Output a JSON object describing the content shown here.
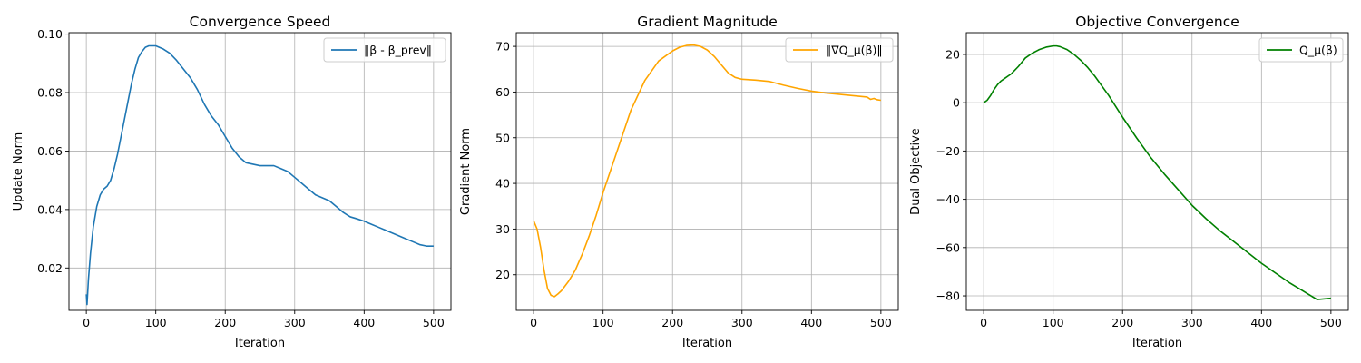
{
  "chart_data": [
    {
      "type": "line",
      "title": "Convergence Speed",
      "xlabel": "Iteration",
      "ylabel": "Update Norm",
      "xlim": [
        -25,
        525
      ],
      "ylim": [
        0.0055,
        0.1005
      ],
      "xticks": [
        0,
        100,
        200,
        300,
        400,
        500
      ],
      "xtick_labels": [
        "0",
        "100",
        "200",
        "300",
        "400",
        "500"
      ],
      "yticks": [
        0.02,
        0.04,
        0.06,
        0.08,
        0.1
      ],
      "ytick_labels": [
        "0.02",
        "0.04",
        "0.06",
        "0.08",
        "0.10"
      ],
      "grid": true,
      "legend_position": "top-right",
      "series": [
        {
          "name": "‖β - β_prev‖",
          "color": "#1f77b4",
          "x": [
            0,
            1,
            3,
            6,
            10,
            15,
            20,
            25,
            30,
            35,
            40,
            45,
            50,
            55,
            60,
            65,
            70,
            75,
            80,
            85,
            90,
            95,
            100,
            105,
            110,
            120,
            130,
            140,
            150,
            160,
            170,
            180,
            190,
            200,
            210,
            220,
            230,
            240,
            250,
            260,
            270,
            280,
            290,
            300,
            310,
            320,
            330,
            340,
            350,
            360,
            370,
            380,
            390,
            400,
            410,
            420,
            430,
            440,
            450,
            460,
            470,
            480,
            490,
            500
          ],
          "y": [
            0.011,
            0.0075,
            0.016,
            0.025,
            0.034,
            0.041,
            0.045,
            0.047,
            0.048,
            0.05,
            0.054,
            0.059,
            0.065,
            0.071,
            0.077,
            0.083,
            0.088,
            0.092,
            0.094,
            0.0955,
            0.096,
            0.096,
            0.096,
            0.0955,
            0.095,
            0.0935,
            0.091,
            0.088,
            0.085,
            0.081,
            0.076,
            0.072,
            0.069,
            0.065,
            0.061,
            0.058,
            0.056,
            0.0555,
            0.055,
            0.055,
            0.055,
            0.054,
            0.053,
            0.051,
            0.049,
            0.047,
            0.045,
            0.044,
            0.043,
            0.041,
            0.039,
            0.0375,
            0.0368,
            0.036,
            0.035,
            0.034,
            0.033,
            0.032,
            0.031,
            0.03,
            0.029,
            0.028,
            0.0275,
            0.0275
          ]
        }
      ]
    },
    {
      "type": "line",
      "title": "Gradient Magnitude",
      "xlabel": "Iteration",
      "ylabel": "Gradient Norm",
      "xlim": [
        -25,
        525
      ],
      "ylim": [
        12.2,
        73
      ],
      "xticks": [
        0,
        100,
        200,
        300,
        400,
        500
      ],
      "xtick_labels": [
        "0",
        "100",
        "200",
        "300",
        "400",
        "500"
      ],
      "yticks": [
        20,
        30,
        40,
        50,
        60,
        70
      ],
      "ytick_labels": [
        "20",
        "30",
        "40",
        "50",
        "60",
        "70"
      ],
      "grid": true,
      "legend_position": "top-right",
      "series": [
        {
          "name": "‖∇Q_μ(β)‖",
          "color": "#ffa500",
          "x": [
            0,
            5,
            10,
            15,
            20,
            25,
            30,
            35,
            40,
            50,
            60,
            70,
            80,
            90,
            100,
            120,
            140,
            160,
            180,
            200,
            210,
            220,
            230,
            240,
            250,
            260,
            270,
            280,
            290,
            300,
            320,
            340,
            360,
            380,
            400,
            420,
            440,
            460,
            480,
            485,
            490,
            495,
            500
          ],
          "y": [
            31.8,
            30,
            26,
            21,
            17,
            15.5,
            15.2,
            15.8,
            16.5,
            18.5,
            21,
            24.5,
            28.5,
            33,
            38,
            47,
            56,
            62.5,
            66.8,
            69,
            69.8,
            70.2,
            70.3,
            70,
            69.2,
            67.8,
            66,
            64.2,
            63.2,
            62.8,
            62.6,
            62.3,
            61.5,
            60.8,
            60.2,
            59.8,
            59.5,
            59.2,
            58.9,
            58.4,
            58.6,
            58.3,
            58.2
          ]
        }
      ]
    },
    {
      "type": "line",
      "title": "Objective Convergence",
      "xlabel": "Iteration",
      "ylabel": "Dual Objective",
      "xlim": [
        -25,
        525
      ],
      "ylim": [
        -86,
        29
      ],
      "xticks": [
        0,
        100,
        200,
        300,
        400,
        500
      ],
      "xtick_labels": [
        "0",
        "100",
        "200",
        "300",
        "400",
        "500"
      ],
      "yticks": [
        -80,
        -60,
        -40,
        -20,
        0,
        20
      ],
      "ytick_labels": [
        "−80",
        "−60",
        "−40",
        "−20",
        "0",
        "20"
      ],
      "grid": true,
      "legend_position": "top-right",
      "series": [
        {
          "name": "Q_μ(β)",
          "color": "#008000",
          "x": [
            0,
            5,
            10,
            15,
            20,
            25,
            30,
            35,
            40,
            50,
            60,
            70,
            80,
            90,
            100,
            105,
            110,
            120,
            130,
            140,
            150,
            160,
            170,
            180,
            190,
            200,
            220,
            240,
            260,
            280,
            300,
            320,
            340,
            360,
            380,
            400,
            420,
            440,
            460,
            480,
            500
          ],
          "y": [
            0,
            1,
            3,
            5.5,
            7.5,
            9,
            10,
            11,
            12,
            15,
            18.5,
            20.5,
            22,
            23,
            23.5,
            23.5,
            23.2,
            22,
            20,
            17.5,
            14.5,
            11,
            7,
            3,
            -1.5,
            -6,
            -14.5,
            -22.5,
            -29.5,
            -36,
            -42.5,
            -48,
            -53,
            -57.5,
            -62,
            -66.5,
            -70.5,
            -74.5,
            -78,
            -81.5,
            -81
          ]
        }
      ]
    }
  ]
}
